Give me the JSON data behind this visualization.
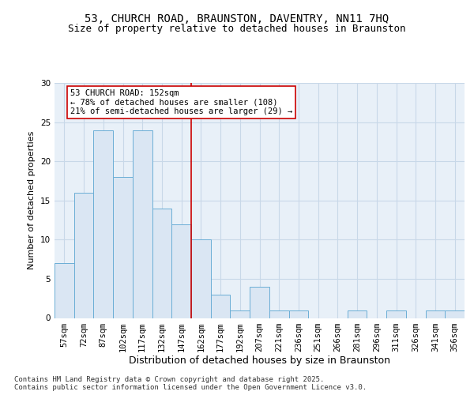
{
  "title_line1": "53, CHURCH ROAD, BRAUNSTON, DAVENTRY, NN11 7HQ",
  "title_line2": "Size of property relative to detached houses in Braunston",
  "xlabel": "Distribution of detached houses by size in Braunston",
  "ylabel": "Number of detached properties",
  "categories": [
    "57sqm",
    "72sqm",
    "87sqm",
    "102sqm",
    "117sqm",
    "132sqm",
    "147sqm",
    "162sqm",
    "177sqm",
    "192sqm",
    "207sqm",
    "221sqm",
    "236sqm",
    "251sqm",
    "266sqm",
    "281sqm",
    "296sqm",
    "311sqm",
    "326sqm",
    "341sqm",
    "356sqm"
  ],
  "values": [
    7,
    16,
    24,
    18,
    24,
    14,
    12,
    10,
    3,
    1,
    4,
    1,
    1,
    0,
    0,
    1,
    0,
    1,
    0,
    1,
    1
  ],
  "bar_color": "#dae6f3",
  "bar_edge_color": "#6baed6",
  "bar_edge_width": 0.7,
  "grid_color": "#c8d8e8",
  "bg_color": "#e8f0f8",
  "ylim": [
    0,
    30
  ],
  "yticks": [
    0,
    5,
    10,
    15,
    20,
    25,
    30
  ],
  "annotation_text": "53 CHURCH ROAD: 152sqm\n← 78% of detached houses are smaller (108)\n21% of semi-detached houses are larger (29) →",
  "vline_x_index": 7.5,
  "vline_color": "#cc0000",
  "annotation_box_color": "#ffffff",
  "annotation_box_edge": "#cc0000",
  "footer_text": "Contains HM Land Registry data © Crown copyright and database right 2025.\nContains public sector information licensed under the Open Government Licence v3.0.",
  "title_fontsize": 10,
  "subtitle_fontsize": 9,
  "xlabel_fontsize": 9,
  "ylabel_fontsize": 8,
  "tick_fontsize": 7.5,
  "annotation_fontsize": 7.5,
  "footer_fontsize": 6.5
}
